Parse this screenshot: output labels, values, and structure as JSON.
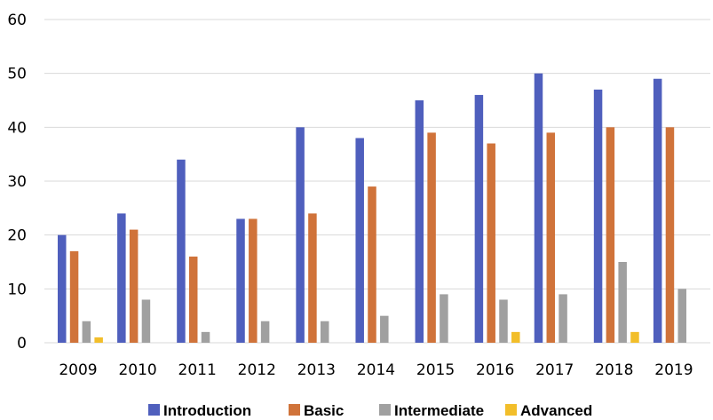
{
  "chart_data": {
    "type": "bar",
    "title": "",
    "xlabel": "",
    "ylabel": "",
    "ylim": [
      0,
      60
    ],
    "yticks": [
      0,
      10,
      20,
      30,
      40,
      50,
      60
    ],
    "grid": true,
    "legend_position": "bottom",
    "categories": [
      "2009",
      "2010",
      "2011",
      "2012",
      "2013",
      "2014",
      "2015",
      "2016",
      "2017",
      "2018",
      "2019"
    ],
    "series": [
      {
        "name": "Introduction",
        "color": "#4f5fbd",
        "values": [
          20,
          24,
          34,
          23,
          40,
          38,
          45,
          46,
          50,
          47,
          49
        ]
      },
      {
        "name": "Basic",
        "color": "#d0733a",
        "values": [
          17,
          21,
          16,
          23,
          24,
          29,
          39,
          37,
          39,
          40,
          40
        ]
      },
      {
        "name": "Intermediate",
        "color": "#a0a0a0",
        "values": [
          4,
          8,
          2,
          4,
          4,
          5,
          9,
          8,
          9,
          15,
          10
        ]
      },
      {
        "name": "Advanced",
        "color": "#f2be2a",
        "values": [
          1,
          0,
          0,
          0,
          0,
          0,
          0,
          2,
          0,
          2,
          0
        ]
      }
    ]
  }
}
